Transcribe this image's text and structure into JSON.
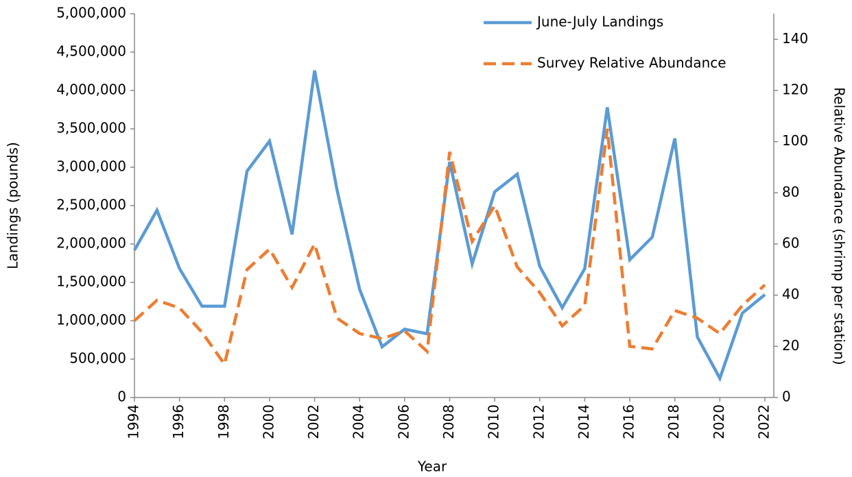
{
  "chart_data": {
    "type": "line",
    "x_label": "Year",
    "y_label": "Landings (pounds)",
    "y2_label": "Relative Abundance (shrimp per station)",
    "x": [
      1994,
      1995,
      1996,
      1997,
      1998,
      1999,
      2000,
      2001,
      2002,
      2003,
      2004,
      2005,
      2006,
      2007,
      2008,
      2009,
      2010,
      2011,
      2012,
      2013,
      2014,
      2015,
      2016,
      2017,
      2018,
      2019,
      2020,
      2021,
      2022
    ],
    "series": [
      {
        "name": "June-July Landings",
        "color": "#5b9bd5",
        "dash": false,
        "values": [
          1920000,
          2440000,
          1680000,
          1190000,
          1190000,
          2950000,
          3340000,
          2125000,
          4260000,
          2700000,
          1410000,
          660000,
          890000,
          830000,
          3070000,
          1740000,
          2680000,
          2910000,
          1710000,
          1170000,
          1680000,
          3780000,
          1795000,
          2090000,
          3375000,
          790000,
          250000,
          1100000,
          1340000
        ]
      },
      {
        "name": "Survey Relative Abundance",
        "color": "#ed7d31",
        "dash": true,
        "axis": "y2",
        "values": [
          30,
          38,
          35,
          25.5,
          13,
          50,
          58,
          43,
          60,
          31,
          25,
          23,
          26,
          18,
          96,
          61,
          75,
          51,
          41,
          28,
          36,
          105,
          20,
          19,
          34,
          31,
          25,
          36,
          44
        ]
      }
    ],
    "xlim": [
      1994,
      2022
    ],
    "xticks": [
      1994,
      1996,
      1998,
      2000,
      2002,
      2004,
      2006,
      2008,
      2010,
      2012,
      2014,
      2016,
      2018,
      2020,
      2022
    ],
    "ylim": [
      0,
      5000000
    ],
    "yticks": [
      0,
      {
        "value": 500000,
        "label": "500,000"
      },
      {
        "value": 1000000,
        "label": "1,000,000"
      },
      {
        "value": 1500000,
        "label": "1,500,000"
      },
      {
        "value": 2000000,
        "label": "2,000,000"
      },
      {
        "value": 2500000,
        "label": "2,500,000"
      },
      {
        "value": 3000000,
        "label": "3,000,000"
      },
      {
        "value": 3500000,
        "label": "3,500,000"
      },
      {
        "value": 4000000,
        "label": "4,000,000"
      },
      {
        "value": 4500000,
        "label": "4,500,000"
      },
      {
        "value": 5000000,
        "label": "5,000,000"
      }
    ],
    "y2lim": [
      0,
      150
    ],
    "y2ticks": [
      0,
      20,
      40,
      60,
      80,
      100,
      120,
      140
    ],
    "grid": false,
    "legend": "top-right"
  }
}
